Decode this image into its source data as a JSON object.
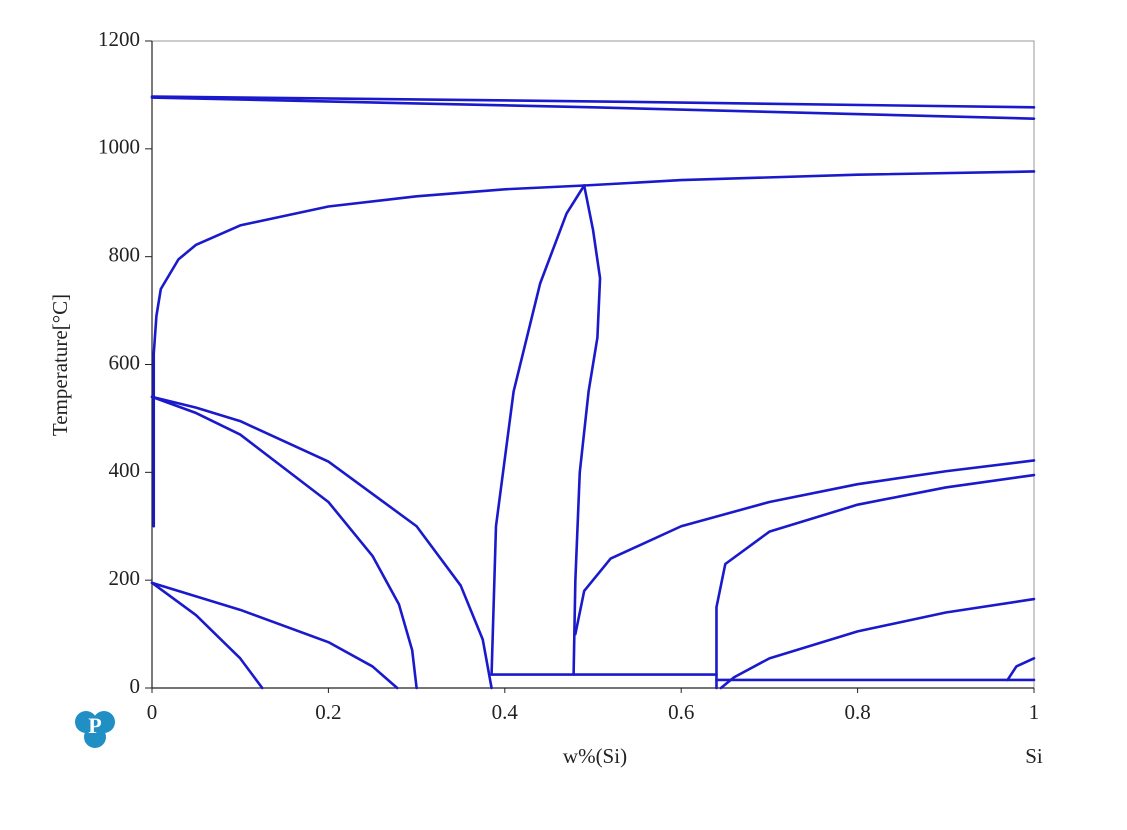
{
  "chart_data": {
    "type": "line",
    "x_label": "w%(Si)",
    "y_label": "Temperature[°C]",
    "annotation": "Si",
    "xlim": [
      0,
      1
    ],
    "ylim": [
      0,
      1200
    ],
    "xticks": [
      0,
      0.2,
      0.4,
      0.6,
      0.8,
      1
    ],
    "yticks": [
      0,
      200,
      400,
      600,
      800,
      1000,
      1200
    ],
    "grid": false,
    "series": [
      {
        "color": "#1a1acc",
        "x": [
          0,
          0.5,
          1
        ],
        "values": [
          1097,
          1088,
          1077
        ]
      },
      {
        "color": "#1a1acc",
        "x": [
          0,
          0.5,
          1
        ],
        "values": [
          1095,
          1077,
          1056
        ]
      },
      {
        "color": "#1a1acc",
        "x": [
          0.002,
          0.005,
          0.01,
          0.03,
          0.05,
          0.1,
          0.2,
          0.3,
          0.4,
          0.49,
          0.6,
          0.8,
          1
        ],
        "values": [
          620,
          690,
          740,
          795,
          822,
          858,
          893,
          912,
          925,
          932,
          942,
          952,
          958
        ]
      },
      {
        "color": "#1a1acc",
        "x": [
          0.002,
          0.002
        ],
        "values": [
          300,
          620
        ]
      },
      {
        "color": "#1a1acc",
        "x": [
          0,
          0.05,
          0.1,
          0.2,
          0.3,
          0.35,
          0.375,
          0.385
        ],
        "values": [
          540,
          520,
          495,
          420,
          300,
          190,
          90,
          0
        ]
      },
      {
        "color": "#1a1acc",
        "x": [
          0,
          0.05,
          0.1,
          0.2,
          0.25,
          0.28,
          0.295,
          0.3
        ],
        "values": [
          540,
          510,
          470,
          345,
          245,
          155,
          70,
          0
        ]
      },
      {
        "color": "#1a1acc",
        "x": [
          0,
          0.05,
          0.1,
          0.125
        ],
        "values": [
          195,
          135,
          55,
          0
        ]
      },
      {
        "color": "#1a1acc",
        "x": [
          0,
          0.1,
          0.2,
          0.25,
          0.278
        ],
        "values": [
          195,
          145,
          85,
          40,
          0
        ]
      },
      {
        "color": "#1a1acc",
        "x": [
          0.385,
          0.39,
          0.41,
          0.44,
          0.47,
          0.49
        ],
        "values": [
          25,
          300,
          550,
          750,
          880,
          932
        ]
      },
      {
        "color": "#1a1acc",
        "x": [
          0.49,
          0.5,
          0.508,
          0.505,
          0.495,
          0.485,
          0.48,
          0.478
        ],
        "values": [
          932,
          850,
          760,
          650,
          550,
          400,
          200,
          25
        ]
      },
      {
        "color": "#1a1acc",
        "x": [
          0.385,
          0.64
        ],
        "values": [
          25,
          25
        ]
      },
      {
        "color": "#1a1acc",
        "x": [
          0.48,
          0.49,
          0.52,
          0.6,
          0.7,
          0.8,
          0.9,
          1
        ],
        "values": [
          100,
          180,
          240,
          300,
          345,
          378,
          402,
          422
        ]
      },
      {
        "color": "#1a1acc",
        "x": [
          0.64,
          0.64,
          0.65,
          0.7,
          0.8,
          0.9,
          1
        ],
        "values": [
          0,
          150,
          230,
          290,
          340,
          372,
          395
        ]
      },
      {
        "color": "#1a1acc",
        "x": [
          0.645,
          0.66,
          0.7,
          0.8,
          0.9,
          1
        ],
        "values": [
          0,
          20,
          55,
          105,
          140,
          165
        ]
      },
      {
        "color": "#1a1acc",
        "x": [
          0.64,
          1
        ],
        "values": [
          15,
          15
        ]
      },
      {
        "color": "#1a1acc",
        "x": [
          0.97,
          0.98,
          1
        ],
        "values": [
          15,
          40,
          55
        ]
      }
    ]
  },
  "logo": "P"
}
